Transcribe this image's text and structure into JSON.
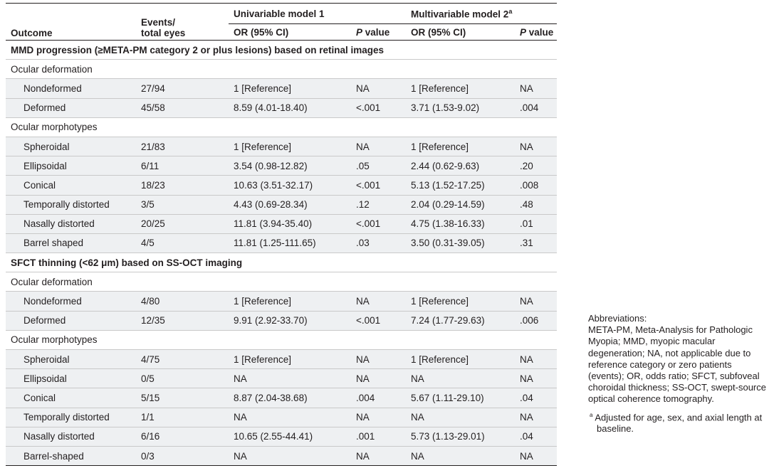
{
  "header": {
    "outcome": "Outcome",
    "events_line1": "Events/",
    "events_line2": "total eyes",
    "univariable": "Univariable model 1",
    "multivariable": "Multivariable model 2",
    "multivariable_sup": "a",
    "or_ci": "OR (95% CI)",
    "p_italic": "P",
    "p_rest": " value"
  },
  "sections": [
    {
      "title": "MMD progression (≥META-PM category 2 or plus lesions) based on retinal images",
      "groups": [
        {
          "name": "Ocular deformation",
          "rows": [
            {
              "label": "Nondeformed",
              "events": "27/94",
              "or1": "1 [Reference]",
              "p1": "NA",
              "or2": "1 [Reference]",
              "p2": "NA"
            },
            {
              "label": "Deformed",
              "events": "45/58",
              "or1": "8.59 (4.01-18.40)",
              "p1": "<.001",
              "or2": "3.71 (1.53-9.02)",
              "p2": ".004"
            }
          ]
        },
        {
          "name": "Ocular morphotypes",
          "rows": [
            {
              "label": "Spheroidal",
              "events": "21/83",
              "or1": "1 [Reference]",
              "p1": "NA",
              "or2": "1 [Reference]",
              "p2": "NA"
            },
            {
              "label": "Ellipsoidal",
              "events": "6/11",
              "or1": "3.54 (0.98-12.82)",
              "p1": ".05",
              "or2": "2.44 (0.62-9.63)",
              "p2": ".20"
            },
            {
              "label": "Conical",
              "events": "18/23",
              "or1": "10.63 (3.51-32.17)",
              "p1": "<.001",
              "or2": "5.13 (1.52-17.25)",
              "p2": ".008"
            },
            {
              "label": "Temporally distorted",
              "events": "3/5",
              "or1": "4.43 (0.69-28.34)",
              "p1": ".12",
              "or2": "2.04 (0.29-14.59)",
              "p2": ".48"
            },
            {
              "label": "Nasally distorted",
              "events": "20/25",
              "or1": "11.81 (3.94-35.40)",
              "p1": "<.001",
              "or2": "4.75 (1.38-16.33)",
              "p2": ".01"
            },
            {
              "label": "Barrel shaped",
              "events": "4/5",
              "or1": "11.81 (1.25-111.65)",
              "p1": ".03",
              "or2": "3.50 (0.31-39.05)",
              "p2": ".31"
            }
          ]
        }
      ]
    },
    {
      "title": "SFCT thinning (<62 μm) based on SS-OCT imaging",
      "groups": [
        {
          "name": "Ocular deformation",
          "rows": [
            {
              "label": "Nondeformed",
              "events": "4/80",
              "or1": "1 [Reference]",
              "p1": "NA",
              "or2": "1 [Reference]",
              "p2": "NA"
            },
            {
              "label": "Deformed",
              "events": "12/35",
              "or1": "9.91 (2.92-33.70)",
              "p1": "<.001",
              "or2": "7.24 (1.77-29.63)",
              "p2": ".006"
            }
          ]
        },
        {
          "name": "Ocular morphotypes",
          "rows": [
            {
              "label": "Spheroidal",
              "events": "4/75",
              "or1": "1 [Reference]",
              "p1": "NA",
              "or2": "1 [Reference]",
              "p2": "NA"
            },
            {
              "label": "Ellipsoidal",
              "events": "0/5",
              "or1": "NA",
              "p1": "NA",
              "or2": "NA",
              "p2": "NA"
            },
            {
              "label": "Conical",
              "events": "5/15",
              "or1": "8.87 (2.04-38.68)",
              "p1": ".004",
              "or2": "5.67 (1.11-29.10)",
              "p2": ".04"
            },
            {
              "label": "Temporally distorted",
              "events": "1/1",
              "or1": "NA",
              "p1": "NA",
              "or2": "NA",
              "p2": "NA"
            },
            {
              "label": "Nasally distorted",
              "events": "6/16",
              "or1": "10.65 (2.55-44.41)",
              "p1": ".001",
              "or2": "5.73 (1.13-29.01)",
              "p2": ".04"
            },
            {
              "label": "Barrel-shaped",
              "events": "0/3",
              "or1": "NA",
              "p1": "NA",
              "or2": "NA",
              "p2": "NA"
            }
          ]
        }
      ]
    }
  ],
  "notes": {
    "abbr_title": "Abbreviations:",
    "abbr_text": "META-PM, Meta-Analysis for Pathologic Myopia; MMD, myopic macular degeneration; NA, not applicable due to reference category or zero patients (events); OR, odds ratio; SFCT, subfoveal choroidal thickness; SS-OCT, swept-source optical coherence tomography.",
    "footnote_mark": "a",
    "footnote_text": " Adjusted for age, sex, and axial length at baseline."
  }
}
